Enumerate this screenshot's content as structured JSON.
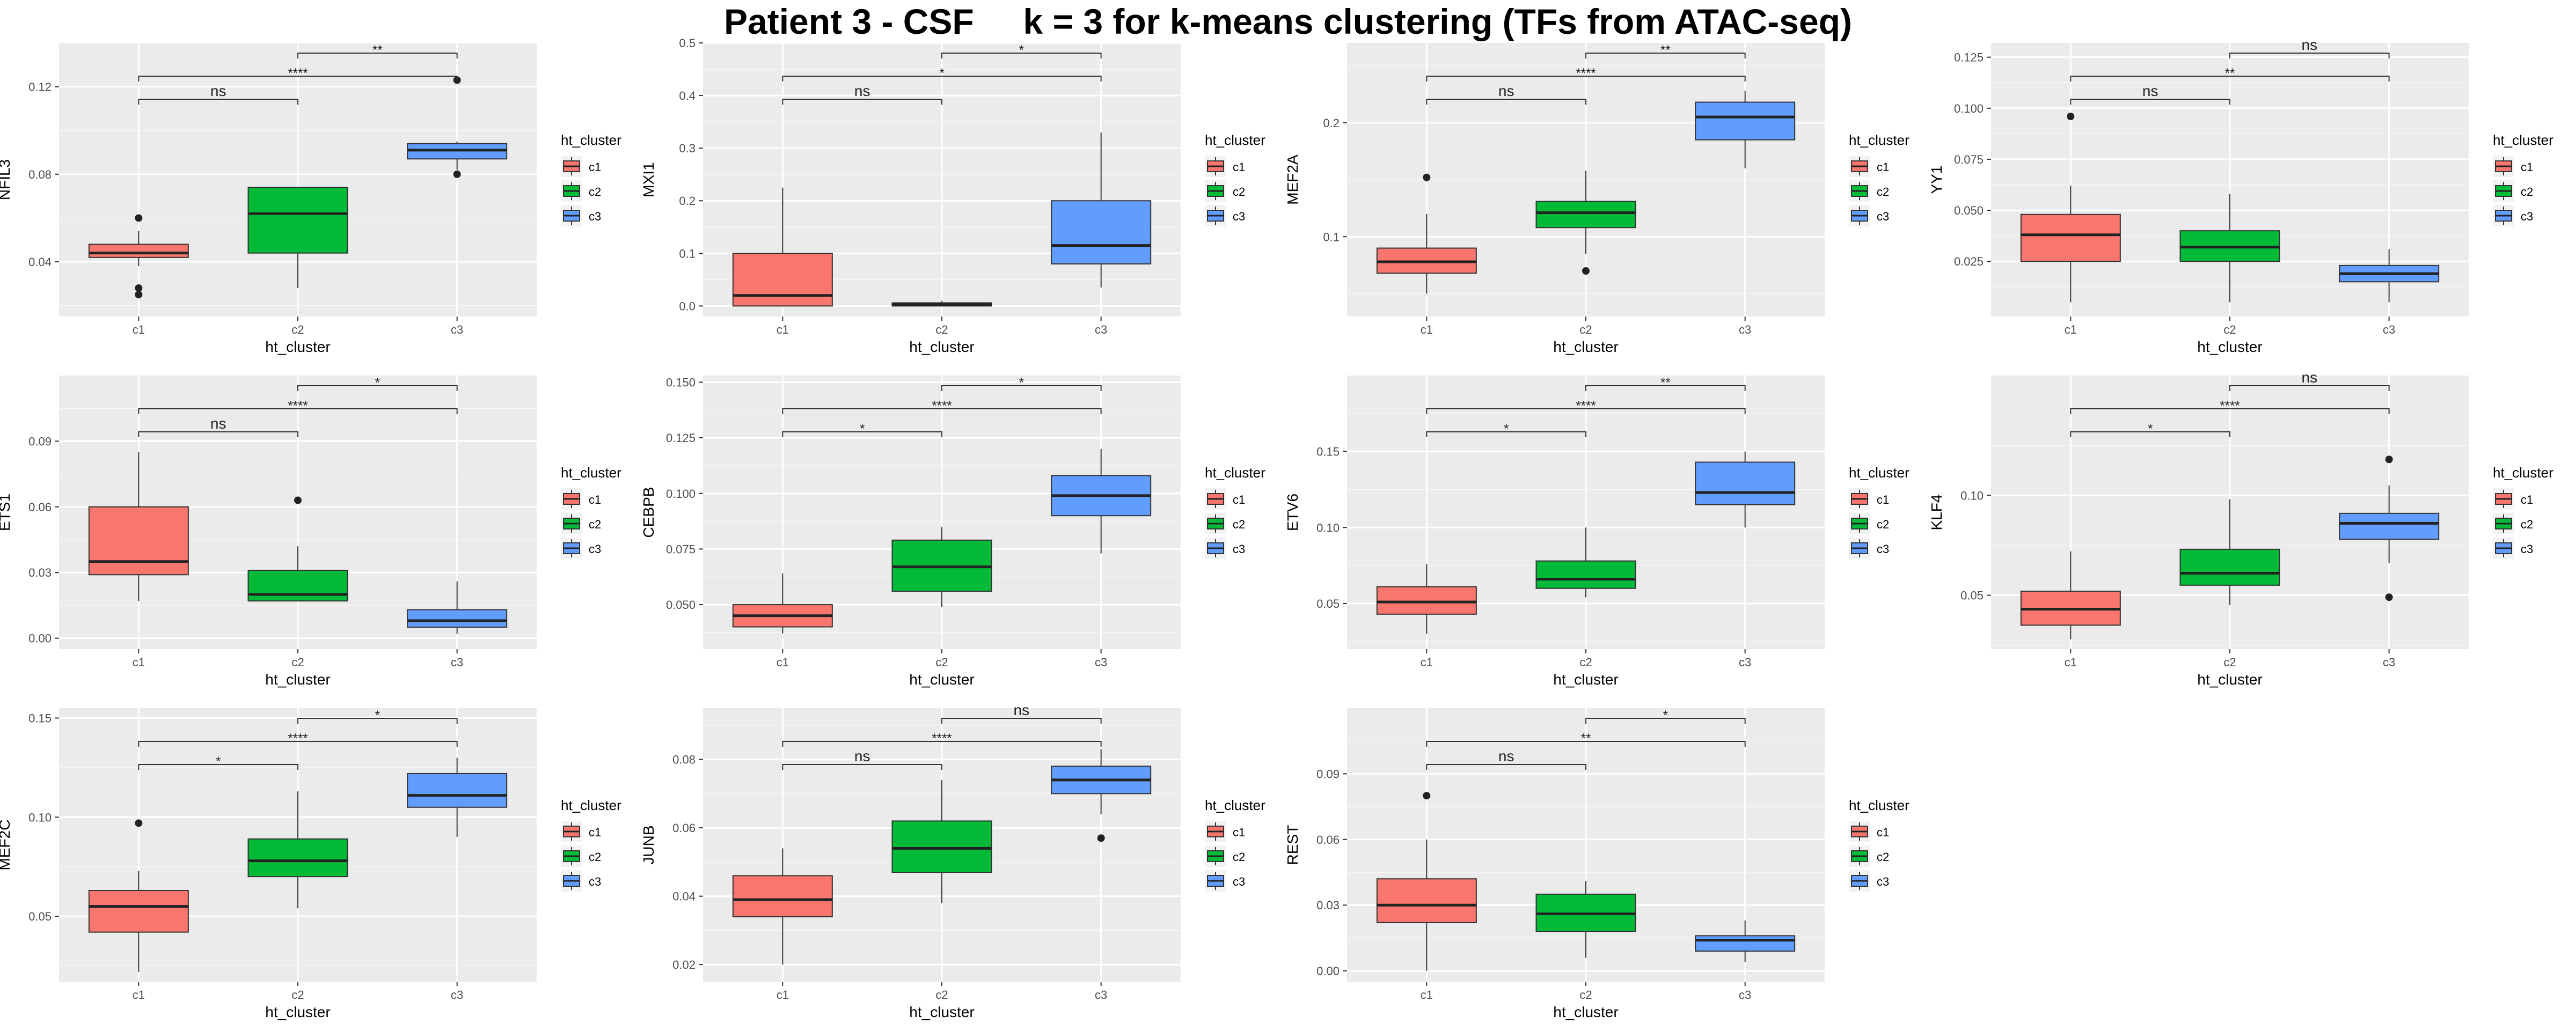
{
  "figure": {
    "title": "Patient 3 - CSF     k = 3 for k-means clustering (TFs from ATAC-seq)",
    "x_axis_label": "ht_cluster",
    "legend_title": "ht_cluster"
  },
  "chart_data": [
    {
      "type": "box",
      "title": "",
      "ylabel": "NFIL3",
      "xlabel": "ht_cluster",
      "categories": [
        "c1",
        "c2",
        "c3"
      ],
      "ylim": [
        0.015,
        0.14
      ],
      "yticks": [
        0.04,
        0.08,
        0.12
      ],
      "ytick_labels": [
        "0.04",
        "0.08",
        "0.12"
      ],
      "grid": true,
      "legend": {
        "title": "ht_cluster",
        "entries": [
          "c1",
          "c2",
          "c3"
        ],
        "position": "right"
      },
      "boxes": [
        {
          "whisker_low": 0.038,
          "q1": 0.042,
          "median": 0.044,
          "q3": 0.048,
          "whisker_high": 0.054,
          "outliers": [
            0.06,
            0.028,
            0.025
          ]
        },
        {
          "whisker_low": 0.028,
          "q1": 0.044,
          "median": 0.062,
          "q3": 0.074,
          "whisker_high": 0.074,
          "outliers": []
        },
        {
          "whisker_low": 0.082,
          "q1": 0.087,
          "median": 0.091,
          "q3": 0.094,
          "whisker_high": 0.095,
          "outliers": [
            0.123,
            0.08
          ]
        }
      ],
      "comparisons": [
        {
          "pair": [
            "c1",
            "c2"
          ],
          "label": "ns",
          "level": 0
        },
        {
          "pair": [
            "c1",
            "c3"
          ],
          "label": "****",
          "level": 1
        },
        {
          "pair": [
            "c2",
            "c3"
          ],
          "label": "**",
          "level": 2
        }
      ]
    },
    {
      "type": "box",
      "title": "",
      "ylabel": "MXI1",
      "xlabel": "ht_cluster",
      "categories": [
        "c1",
        "c2",
        "c3"
      ],
      "ylim": [
        -0.02,
        0.5
      ],
      "yticks": [
        0.0,
        0.1,
        0.2,
        0.3,
        0.4,
        0.5
      ],
      "ytick_labels": [
        "0.0",
        "0.1",
        "0.2",
        "0.3",
        "0.4",
        "0.5"
      ],
      "grid": true,
      "legend": {
        "title": "ht_cluster",
        "entries": [
          "c1",
          "c2",
          "c3"
        ],
        "position": "right"
      },
      "boxes": [
        {
          "whisker_low": 0.0,
          "q1": 0.0,
          "median": 0.02,
          "q3": 0.1,
          "whisker_high": 0.225,
          "outliers": []
        },
        {
          "whisker_low": 0.0,
          "q1": 0.0,
          "median": 0.003,
          "q3": 0.006,
          "whisker_high": 0.01,
          "outliers": []
        },
        {
          "whisker_low": 0.035,
          "q1": 0.08,
          "median": 0.115,
          "q3": 0.2,
          "whisker_high": 0.33,
          "outliers": []
        }
      ],
      "comparisons": [
        {
          "pair": [
            "c1",
            "c2"
          ],
          "label": "ns",
          "level": 0
        },
        {
          "pair": [
            "c1",
            "c3"
          ],
          "label": "*",
          "level": 1
        },
        {
          "pair": [
            "c2",
            "c3"
          ],
          "label": "*",
          "level": 2
        }
      ]
    },
    {
      "type": "box",
      "title": "",
      "ylabel": "MEF2A",
      "xlabel": "ht_cluster",
      "categories": [
        "c1",
        "c2",
        "c3"
      ],
      "ylim": [
        0.03,
        0.27
      ],
      "yticks": [
        0.1,
        0.2
      ],
      "ytick_labels": [
        "0.1",
        "0.2"
      ],
      "grid": true,
      "legend": {
        "title": "ht_cluster",
        "entries": [
          "c1",
          "c2",
          "c3"
        ],
        "position": "right"
      },
      "boxes": [
        {
          "whisker_low": 0.05,
          "q1": 0.068,
          "median": 0.078,
          "q3": 0.09,
          "whisker_high": 0.12,
          "outliers": [
            0.152
          ]
        },
        {
          "whisker_low": 0.085,
          "q1": 0.108,
          "median": 0.121,
          "q3": 0.131,
          "whisker_high": 0.158,
          "outliers": [
            0.07
          ]
        },
        {
          "whisker_low": 0.16,
          "q1": 0.185,
          "median": 0.205,
          "q3": 0.218,
          "whisker_high": 0.228,
          "outliers": []
        }
      ],
      "comparisons": [
        {
          "pair": [
            "c1",
            "c2"
          ],
          "label": "ns",
          "level": 0
        },
        {
          "pair": [
            "c1",
            "c3"
          ],
          "label": "****",
          "level": 1
        },
        {
          "pair": [
            "c2",
            "c3"
          ],
          "label": "**",
          "level": 2
        }
      ]
    },
    {
      "type": "box",
      "title": "",
      "ylabel": "YY1",
      "xlabel": "ht_cluster",
      "categories": [
        "c1",
        "c2",
        "c3"
      ],
      "ylim": [
        -0.002,
        0.132
      ],
      "yticks": [
        0.025,
        0.05,
        0.075,
        0.1,
        0.125
      ],
      "ytick_labels": [
        "0.025",
        "0.050",
        "0.075",
        "0.100",
        "0.125"
      ],
      "grid": true,
      "legend": {
        "title": "ht_cluster",
        "entries": [
          "c1",
          "c2",
          "c3"
        ],
        "position": "right"
      },
      "boxes": [
        {
          "whisker_low": 0.005,
          "q1": 0.025,
          "median": 0.038,
          "q3": 0.048,
          "whisker_high": 0.062,
          "outliers": [
            0.096
          ]
        },
        {
          "whisker_low": 0.005,
          "q1": 0.025,
          "median": 0.032,
          "q3": 0.04,
          "whisker_high": 0.058,
          "outliers": []
        },
        {
          "whisker_low": 0.005,
          "q1": 0.015,
          "median": 0.019,
          "q3": 0.023,
          "whisker_high": 0.031,
          "outliers": []
        }
      ],
      "comparisons": [
        {
          "pair": [
            "c1",
            "c2"
          ],
          "label": "ns",
          "level": 0
        },
        {
          "pair": [
            "c1",
            "c3"
          ],
          "label": "**",
          "level": 1
        },
        {
          "pair": [
            "c2",
            "c3"
          ],
          "label": "ns",
          "level": 2
        }
      ]
    },
    {
      "type": "box",
      "title": "",
      "ylabel": "ETS1",
      "xlabel": "ht_cluster",
      "categories": [
        "c1",
        "c2",
        "c3"
      ],
      "ylim": [
        -0.005,
        0.12
      ],
      "yticks": [
        0.0,
        0.03,
        0.06,
        0.09
      ],
      "ytick_labels": [
        "0.00",
        "0.03",
        "0.06",
        "0.09"
      ],
      "grid": true,
      "legend": {
        "title": "ht_cluster",
        "entries": [
          "c1",
          "c2",
          "c3"
        ],
        "position": "right"
      },
      "boxes": [
        {
          "whisker_low": 0.017,
          "q1": 0.029,
          "median": 0.035,
          "q3": 0.06,
          "whisker_high": 0.085,
          "outliers": []
        },
        {
          "whisker_low": 0.017,
          "q1": 0.017,
          "median": 0.02,
          "q3": 0.031,
          "whisker_high": 0.042,
          "outliers": [
            0.063
          ]
        },
        {
          "whisker_low": 0.002,
          "q1": 0.005,
          "median": 0.008,
          "q3": 0.013,
          "whisker_high": 0.026,
          "outliers": []
        }
      ],
      "comparisons": [
        {
          "pair": [
            "c1",
            "c2"
          ],
          "label": "ns",
          "level": 0
        },
        {
          "pair": [
            "c1",
            "c3"
          ],
          "label": "****",
          "level": 1
        },
        {
          "pair": [
            "c2",
            "c3"
          ],
          "label": "*",
          "level": 2
        }
      ]
    },
    {
      "type": "box",
      "title": "",
      "ylabel": "CEBPB",
      "xlabel": "ht_cluster",
      "categories": [
        "c1",
        "c2",
        "c3"
      ],
      "ylim": [
        0.03,
        0.153
      ],
      "yticks": [
        0.05,
        0.075,
        0.1,
        0.125,
        0.15
      ],
      "ytick_labels": [
        "0.050",
        "0.075",
        "0.100",
        "0.125",
        "0.150"
      ],
      "grid": true,
      "legend": {
        "title": "ht_cluster",
        "entries": [
          "c1",
          "c2",
          "c3"
        ],
        "position": "right"
      },
      "boxes": [
        {
          "whisker_low": 0.037,
          "q1": 0.04,
          "median": 0.045,
          "q3": 0.05,
          "whisker_high": 0.064,
          "outliers": []
        },
        {
          "whisker_low": 0.049,
          "q1": 0.056,
          "median": 0.067,
          "q3": 0.079,
          "whisker_high": 0.085,
          "outliers": []
        },
        {
          "whisker_low": 0.073,
          "q1": 0.09,
          "median": 0.099,
          "q3": 0.108,
          "whisker_high": 0.12,
          "outliers": []
        }
      ],
      "comparisons": [
        {
          "pair": [
            "c1",
            "c2"
          ],
          "label": "*",
          "level": 0
        },
        {
          "pair": [
            "c1",
            "c3"
          ],
          "label": "****",
          "level": 1
        },
        {
          "pair": [
            "c2",
            "c3"
          ],
          "label": "*",
          "level": 2
        }
      ]
    },
    {
      "type": "box",
      "title": "",
      "ylabel": "ETV6",
      "xlabel": "ht_cluster",
      "categories": [
        "c1",
        "c2",
        "c3"
      ],
      "ylim": [
        0.02,
        0.2
      ],
      "yticks": [
        0.05,
        0.1,
        0.15
      ],
      "ytick_labels": [
        "0.05",
        "0.10",
        "0.15"
      ],
      "grid": true,
      "legend": {
        "title": "ht_cluster",
        "entries": [
          "c1",
          "c2",
          "c3"
        ],
        "position": "right"
      },
      "boxes": [
        {
          "whisker_low": 0.03,
          "q1": 0.043,
          "median": 0.051,
          "q3": 0.061,
          "whisker_high": 0.076,
          "outliers": []
        },
        {
          "whisker_low": 0.054,
          "q1": 0.06,
          "median": 0.066,
          "q3": 0.078,
          "whisker_high": 0.1,
          "outliers": []
        },
        {
          "whisker_low": 0.1,
          "q1": 0.115,
          "median": 0.123,
          "q3": 0.143,
          "whisker_high": 0.15,
          "outliers": []
        }
      ],
      "comparisons": [
        {
          "pair": [
            "c1",
            "c2"
          ],
          "label": "*",
          "level": 0
        },
        {
          "pair": [
            "c1",
            "c3"
          ],
          "label": "****",
          "level": 1
        },
        {
          "pair": [
            "c2",
            "c3"
          ],
          "label": "**",
          "level": 2
        }
      ]
    },
    {
      "type": "box",
      "title": "",
      "ylabel": "KLF4",
      "xlabel": "ht_cluster",
      "categories": [
        "c1",
        "c2",
        "c3"
      ],
      "ylim": [
        0.023,
        0.16
      ],
      "yticks": [
        0.05,
        0.1
      ],
      "ytick_labels": [
        "0.05",
        "0.10"
      ],
      "grid": true,
      "legend": {
        "title": "ht_cluster",
        "entries": [
          "c1",
          "c2",
          "c3"
        ],
        "position": "right"
      },
      "boxes": [
        {
          "whisker_low": 0.028,
          "q1": 0.035,
          "median": 0.043,
          "q3": 0.052,
          "whisker_high": 0.072,
          "outliers": []
        },
        {
          "whisker_low": 0.045,
          "q1": 0.055,
          "median": 0.061,
          "q3": 0.073,
          "whisker_high": 0.098,
          "outliers": []
        },
        {
          "whisker_low": 0.066,
          "q1": 0.078,
          "median": 0.086,
          "q3": 0.091,
          "whisker_high": 0.105,
          "outliers": [
            0.118,
            0.049
          ]
        }
      ],
      "comparisons": [
        {
          "pair": [
            "c1",
            "c2"
          ],
          "label": "*",
          "level": 0
        },
        {
          "pair": [
            "c1",
            "c3"
          ],
          "label": "****",
          "level": 1
        },
        {
          "pair": [
            "c2",
            "c3"
          ],
          "label": "ns",
          "level": 2
        }
      ]
    },
    {
      "type": "box",
      "title": "",
      "ylabel": "MEF2C",
      "xlabel": "ht_cluster",
      "categories": [
        "c1",
        "c2",
        "c3"
      ],
      "ylim": [
        0.017,
        0.155
      ],
      "yticks": [
        0.05,
        0.1,
        0.15
      ],
      "ytick_labels": [
        "0.05",
        "0.10",
        "0.15"
      ],
      "grid": true,
      "legend": {
        "title": "ht_cluster",
        "entries": [
          "c1",
          "c2",
          "c3"
        ],
        "position": "right"
      },
      "boxes": [
        {
          "whisker_low": 0.022,
          "q1": 0.042,
          "median": 0.055,
          "q3": 0.063,
          "whisker_high": 0.073,
          "outliers": [
            0.097
          ]
        },
        {
          "whisker_low": 0.054,
          "q1": 0.07,
          "median": 0.078,
          "q3": 0.089,
          "whisker_high": 0.113,
          "outliers": []
        },
        {
          "whisker_low": 0.09,
          "q1": 0.105,
          "median": 0.111,
          "q3": 0.122,
          "whisker_high": 0.13,
          "outliers": []
        }
      ],
      "comparisons": [
        {
          "pair": [
            "c1",
            "c2"
          ],
          "label": "*",
          "level": 0
        },
        {
          "pair": [
            "c1",
            "c3"
          ],
          "label": "****",
          "level": 1
        },
        {
          "pair": [
            "c2",
            "c3"
          ],
          "label": "*",
          "level": 2
        }
      ]
    },
    {
      "type": "box",
      "title": "",
      "ylabel": "JUNB",
      "xlabel": "ht_cluster",
      "categories": [
        "c1",
        "c2",
        "c3"
      ],
      "ylim": [
        0.015,
        0.095
      ],
      "yticks": [
        0.02,
        0.04,
        0.06,
        0.08
      ],
      "ytick_labels": [
        "0.02",
        "0.04",
        "0.06",
        "0.08"
      ],
      "grid": true,
      "legend": {
        "title": "ht_cluster",
        "entries": [
          "c1",
          "c2",
          "c3"
        ],
        "position": "right"
      },
      "boxes": [
        {
          "whisker_low": 0.02,
          "q1": 0.034,
          "median": 0.039,
          "q3": 0.046,
          "whisker_high": 0.054,
          "outliers": []
        },
        {
          "whisker_low": 0.038,
          "q1": 0.047,
          "median": 0.054,
          "q3": 0.062,
          "whisker_high": 0.074,
          "outliers": []
        },
        {
          "whisker_low": 0.064,
          "q1": 0.07,
          "median": 0.074,
          "q3": 0.078,
          "whisker_high": 0.083,
          "outliers": [
            0.057
          ]
        }
      ],
      "comparisons": [
        {
          "pair": [
            "c1",
            "c2"
          ],
          "label": "ns",
          "level": 0
        },
        {
          "pair": [
            "c1",
            "c3"
          ],
          "label": "****",
          "level": 1
        },
        {
          "pair": [
            "c2",
            "c3"
          ],
          "label": "ns",
          "level": 2
        }
      ]
    },
    {
      "type": "box",
      "title": "",
      "ylabel": "REST",
      "xlabel": "ht_cluster",
      "categories": [
        "c1",
        "c2",
        "c3"
      ],
      "ylim": [
        -0.005,
        0.12
      ],
      "yticks": [
        0.0,
        0.03,
        0.06,
        0.09
      ],
      "ytick_labels": [
        "0.00",
        "0.03",
        "0.06",
        "0.09"
      ],
      "grid": true,
      "legend": {
        "title": "ht_cluster",
        "entries": [
          "c1",
          "c2",
          "c3"
        ],
        "position": "right"
      },
      "boxes": [
        {
          "whisker_low": 0.0,
          "q1": 0.022,
          "median": 0.03,
          "q3": 0.042,
          "whisker_high": 0.06,
          "outliers": [
            0.08
          ]
        },
        {
          "whisker_low": 0.006,
          "q1": 0.018,
          "median": 0.026,
          "q3": 0.035,
          "whisker_high": 0.041,
          "outliers": []
        },
        {
          "whisker_low": 0.004,
          "q1": 0.009,
          "median": 0.014,
          "q3": 0.016,
          "whisker_high": 0.023,
          "outliers": []
        }
      ],
      "comparisons": [
        {
          "pair": [
            "c1",
            "c2"
          ],
          "label": "ns",
          "level": 0
        },
        {
          "pair": [
            "c1",
            "c3"
          ],
          "label": "**",
          "level": 1
        },
        {
          "pair": [
            "c2",
            "c3"
          ],
          "label": "*",
          "level": 2
        }
      ]
    }
  ],
  "colors": {
    "c1": "#F8766D",
    "c2": "#00BA38",
    "c3": "#619CFF",
    "panel_background": "#EBEBEB",
    "grid_major": "#FFFFFF",
    "axis_text": "#4D4D4D"
  }
}
